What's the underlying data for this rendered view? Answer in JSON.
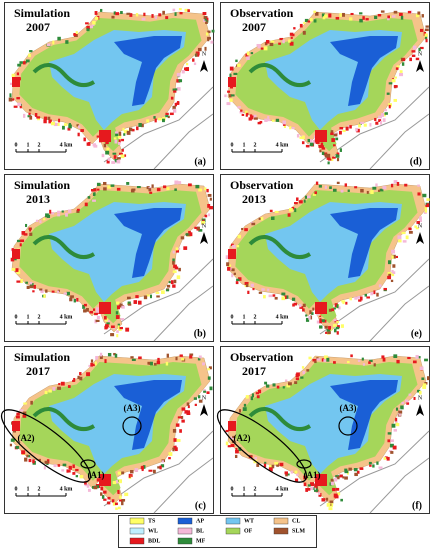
{
  "panels": [
    {
      "title": "Simulation",
      "year": "2007",
      "letter": "(a)",
      "annotations": []
    },
    {
      "title": "Observation",
      "year": "2007",
      "letter": "(d)",
      "annotations": []
    },
    {
      "title": "Simulation",
      "year": "2013",
      "letter": "(b)",
      "annotations": []
    },
    {
      "title": "Observation",
      "year": "2013",
      "letter": "(e)",
      "annotations": []
    },
    {
      "title": "Simulation",
      "year": "2017",
      "letter": "(c)",
      "annotations": [
        "(A3)",
        "(A2)",
        "(A1)"
      ]
    },
    {
      "title": "Observation",
      "year": "2017",
      "letter": "(f)",
      "annotations": [
        "(A3)",
        "(A2)",
        "(A1)"
      ]
    }
  ],
  "scale_labels": [
    "0",
    "1",
    "2",
    "4 km"
  ],
  "north": "N",
  "legend": [
    {
      "label": "TS",
      "color": "#ffff66"
    },
    {
      "label": "AP",
      "color": "#1a5fd6"
    },
    {
      "label": "WT",
      "color": "#73c6f0"
    },
    {
      "label": "CL",
      "color": "#f5c38a"
    },
    {
      "label": "WL",
      "color": "#bfefff"
    },
    {
      "label": "BL",
      "color": "#f5b8d8"
    },
    {
      "label": "OF",
      "color": "#a5d65a"
    },
    {
      "label": "SLM",
      "color": "#a0522d"
    },
    {
      "label": "BDL",
      "color": "#e6191e"
    },
    {
      "label": "MF",
      "color": "#2e8b3a"
    }
  ]
}
